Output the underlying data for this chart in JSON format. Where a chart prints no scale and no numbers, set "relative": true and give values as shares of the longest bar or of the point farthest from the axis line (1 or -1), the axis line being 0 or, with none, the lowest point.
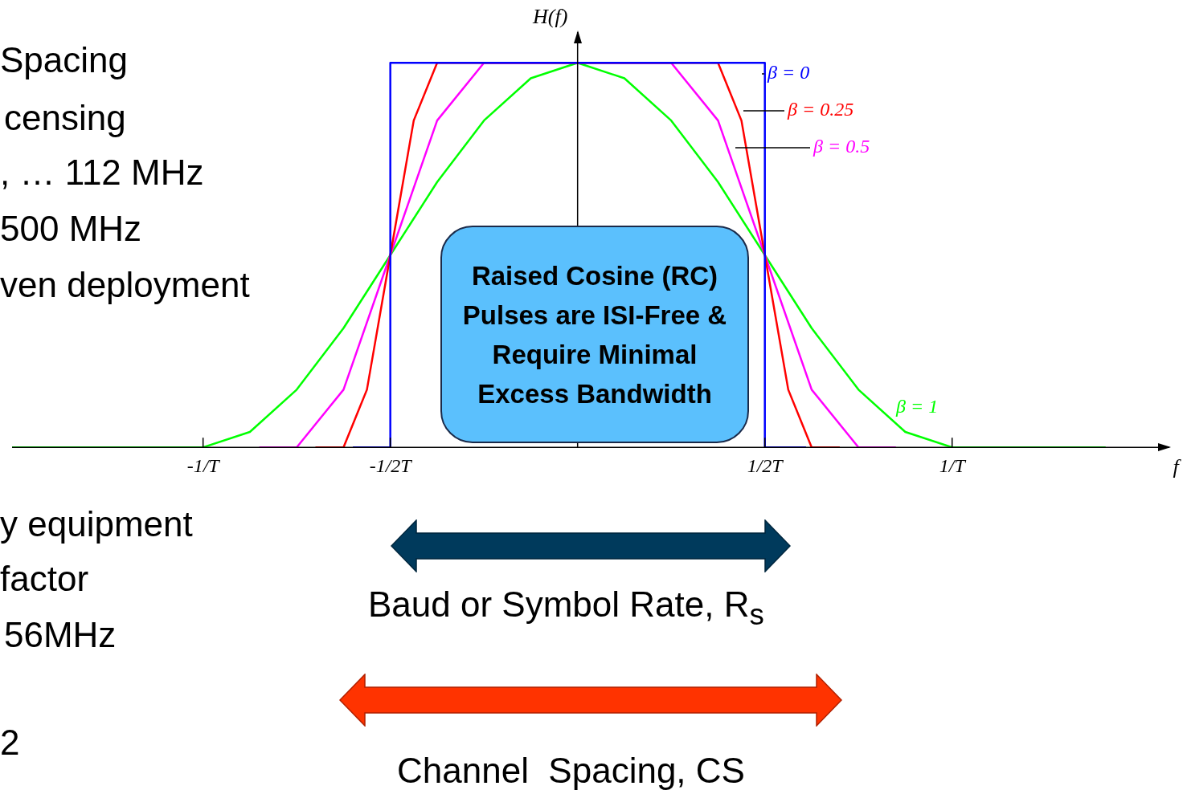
{
  "chart_data": {
    "type": "line",
    "relative": true,
    "xlabel": "f",
    "ylabel": "H(f)",
    "xlim": [
      -1.51,
      1.58
    ],
    "xticks": [
      {
        "value": -1,
        "label": "-1/T"
      },
      {
        "value": -0.5,
        "label": "-1/2T"
      },
      {
        "value": 0.5,
        "label": "1/2T"
      },
      {
        "value": 1,
        "label": "1/T"
      }
    ],
    "tick_labels": "x",
    "legend": false,
    "grid": false,
    "marker": "none",
    "line_style": "solid",
    "series": [
      {
        "name": "β = 0",
        "color": "#0000ff",
        "x": [
          -0.6,
          -0.5,
          -0.5,
          0.5,
          0.5,
          0.61
        ],
        "values": [
          0,
          0,
          1,
          1,
          0,
          0
        ]
      },
      {
        "name": "β = 0.25",
        "color": "#ff0000",
        "x": [
          -0.7,
          -0.625,
          -0.5625,
          -0.5,
          -0.4375,
          -0.375,
          0.375,
          0.4375,
          0.5,
          0.5625,
          0.625,
          0.7
        ],
        "values": [
          0,
          0,
          0.15,
          0.5,
          0.85,
          1,
          1,
          0.85,
          0.5,
          0.15,
          0,
          0
        ]
      },
      {
        "name": "β = 0.5",
        "color": "#ff00ff",
        "x": [
          -0.85,
          -0.75,
          -0.625,
          -0.5,
          -0.375,
          -0.25,
          0.25,
          0.375,
          0.5,
          0.625,
          0.75,
          0.85
        ],
        "values": [
          0,
          0,
          0.15,
          0.5,
          0.85,
          1,
          1,
          0.85,
          0.5,
          0.15,
          0,
          0
        ]
      },
      {
        "name": "β = 1",
        "color": "#00ff00",
        "x": [
          -1.51,
          -1,
          -0.875,
          -0.75,
          -0.625,
          -0.5,
          -0.375,
          -0.25,
          -0.125,
          0,
          0.125,
          0.25,
          0.375,
          0.5,
          0.625,
          0.75,
          0.875,
          1,
          1.41
        ],
        "values": [
          0,
          0,
          0.04,
          0.15,
          0.31,
          0.5,
          0.69,
          0.85,
          0.96,
          1,
          0.96,
          0.85,
          0.69,
          0.5,
          0.31,
          0.15,
          0.04,
          0,
          0
        ]
      }
    ],
    "annotations": [
      "Spacing",
      "censing",
      ", … 112 MHz",
      "500 MHz",
      "ven deployment",
      "y equipment",
      "factor",
      "56MHz",
      "2",
      "Raised Cosine (RC) Pulses are ISI-Free & Require Minimal Excess Bandwidth",
      "Baud or Symbol Rate, R$_{s}$",
      "Channel  Spacing, CS"
    ]
  }
}
